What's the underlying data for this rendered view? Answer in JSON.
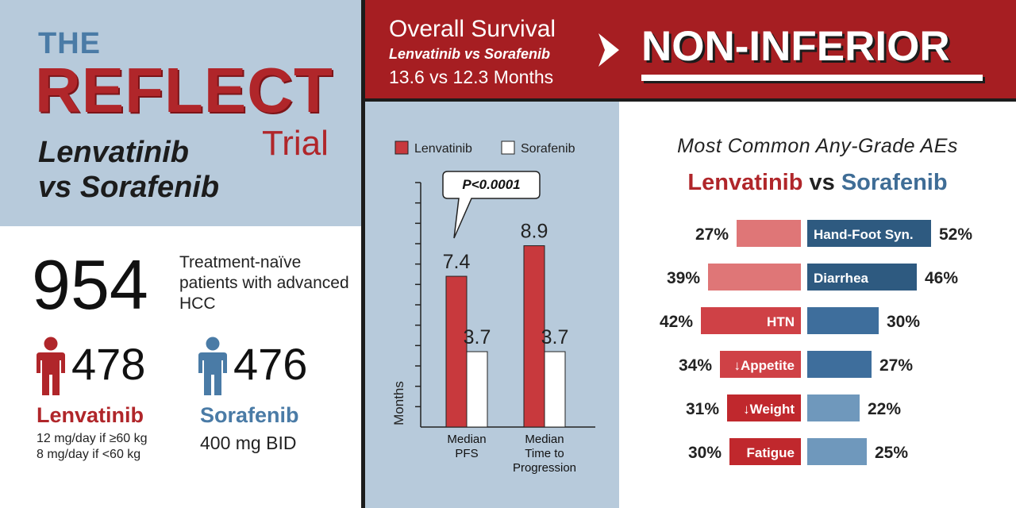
{
  "trial": {
    "the": "THE",
    "name": "REFLECT",
    "trial_word": "Trial",
    "subtitle_line1": "Lenvatinib",
    "subtitle_line2": "vs Sorafenib"
  },
  "enrollment": {
    "total": "954",
    "description": "Treatment-naïve patients with advanced HCC",
    "arms": [
      {
        "count": "478",
        "name": "Lenvatinib",
        "dose_line1": "12 mg/day if ≥60 kg",
        "dose_line2": "8 mg/day if <60 kg",
        "color": "#b0262a"
      },
      {
        "count": "476",
        "name": "Sorafenib",
        "dose_line1": "400 mg BID",
        "color": "#4a7ba6"
      }
    ]
  },
  "overall_survival": {
    "title": "Overall Survival",
    "comparison": "Lenvatinib vs Sorafenib",
    "months": "13.6 vs 12.3 Months",
    "verdict": "NON-INFERIOR"
  },
  "colors": {
    "lenvatinib": "#c8393d",
    "sorafenib": "#ffffff",
    "brand_red": "#a61e22",
    "brand_blue": "#3f6d96",
    "panel_blue": "#b7cadb"
  },
  "chart_data": [
    {
      "type": "bar",
      "ylabel": "Months",
      "categories": [
        "Median PFS",
        "Median Time to Progression"
      ],
      "category_lines": [
        [
          "Median",
          "PFS"
        ],
        [
          "Median",
          "Time to",
          "Progression"
        ]
      ],
      "series": [
        {
          "name": "Lenvatinib",
          "values": [
            7.4,
            8.9
          ]
        },
        {
          "name": "Sorafenib",
          "values": [
            3.7,
            3.7
          ]
        }
      ],
      "value_labels": [
        [
          "7.4",
          "8.9"
        ],
        [
          "3.7",
          "3.7"
        ]
      ],
      "annotation": "P<0.0001",
      "ylim": [
        0,
        12
      ],
      "legend": "top"
    },
    {
      "type": "bar",
      "title": "Most Common Any-Grade AEs",
      "series_names": [
        "Lenvatinib",
        "Sorafenib"
      ],
      "vs_word": "vs",
      "categories": [
        "Hand-Foot Syn.",
        "Diarrhea",
        "HTN",
        "↓Appetite",
        "↓Weight",
        "Fatigue"
      ],
      "lenvatinib": [
        27,
        39,
        42,
        34,
        31,
        30
      ],
      "sorafenib": [
        52,
        46,
        30,
        27,
        22,
        25
      ],
      "lenvatinib_labels": [
        "27%",
        "39%",
        "42%",
        "34%",
        "31%",
        "30%"
      ],
      "sorafenib_labels": [
        "52%",
        "46%",
        "30%",
        "27%",
        "22%",
        "25%"
      ],
      "label_side": [
        "right",
        "right",
        "left",
        "left",
        "left",
        "left"
      ]
    }
  ]
}
